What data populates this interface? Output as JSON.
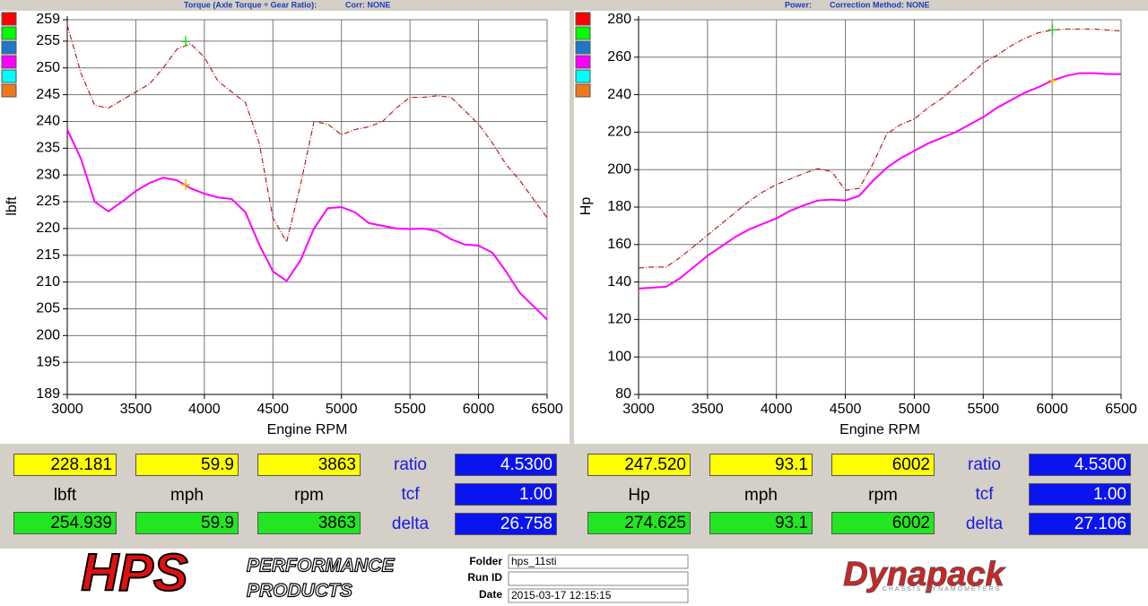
{
  "header": {
    "torque_title": "Torque (Axle Torque ÷ Gear Ratio):",
    "torque_corr": "Corr: NONE",
    "power_title": "Power:",
    "power_corr": "Correction Method: NONE"
  },
  "chart_data": [
    {
      "type": "line",
      "xlabel": "Engine RPM",
      "ylabel": "lbft",
      "grid": true,
      "legend_colors": [
        "#ff0000",
        "#00ff00",
        "#1e78c8",
        "#ff00ff",
        "#00ffff",
        "#f07820"
      ],
      "x": [
        3000,
        3100,
        3200,
        3300,
        3400,
        3500,
        3600,
        3700,
        3800,
        3900,
        4000,
        4100,
        4200,
        4300,
        4400,
        4500,
        4600,
        4700,
        4800,
        4900,
        5000,
        5100,
        5200,
        5300,
        5400,
        5500,
        5600,
        5700,
        5800,
        5900,
        6000,
        6100,
        6200,
        6300,
        6400,
        6500
      ],
      "series": [
        {
          "color": "#ff00ff",
          "dash": false,
          "values": [
            238.5,
            233,
            225,
            223.2,
            225,
            227,
            228.5,
            229.5,
            229,
            227.5,
            226.5,
            225.8,
            225.5,
            223,
            217,
            212,
            210.2,
            214,
            220,
            223.8,
            224,
            223,
            221,
            220.5,
            220,
            219.9,
            220,
            219.5,
            218,
            217,
            216.8,
            215.5,
            212,
            208,
            205.5,
            203
          ]
        },
        {
          "color": "#b22222",
          "dash": true,
          "values": [
            258,
            249,
            243,
            242.5,
            244,
            245.5,
            247,
            250,
            253.5,
            254.5,
            252,
            247.5,
            245.5,
            243.5,
            236,
            222,
            217.5,
            228,
            240,
            239.5,
            237.5,
            238.5,
            239,
            240,
            242.5,
            244.5,
            244.5,
            244.8,
            244.5,
            242,
            239.5,
            236,
            232,
            229,
            225.5,
            222
          ]
        }
      ],
      "cursor": {
        "x": 3863,
        "values": [
          228.181,
          254.939
        ],
        "colors": [
          "#e0c000",
          "#33cc33"
        ]
      },
      "xlim": [
        3000,
        6500
      ],
      "xticks": [
        3000,
        3500,
        4000,
        4500,
        5000,
        5500,
        6000,
        6500
      ],
      "ylim": [
        189,
        259
      ],
      "yticks": [
        189,
        195,
        200,
        205,
        210,
        215,
        220,
        225,
        230,
        235,
        240,
        245,
        250,
        255,
        259
      ]
    },
    {
      "type": "line",
      "xlabel": "Engine RPM",
      "ylabel": "Hp",
      "grid": true,
      "legend_colors": [
        "#ff0000",
        "#00ff00",
        "#1e78c8",
        "#ff00ff",
        "#00ffff",
        "#f07820"
      ],
      "x": [
        3000,
        3100,
        3200,
        3300,
        3400,
        3500,
        3600,
        3700,
        3800,
        3900,
        4000,
        4100,
        4200,
        4300,
        4400,
        4500,
        4600,
        4700,
        4800,
        4900,
        5000,
        5100,
        5200,
        5300,
        5400,
        5500,
        5600,
        5700,
        5800,
        5900,
        6000,
        6100,
        6200,
        6300,
        6400,
        6500
      ],
      "series": [
        {
          "color": "#ff00ff",
          "dash": false,
          "values": [
            136.5,
            137,
            137.5,
            142,
            148,
            154,
            159,
            164,
            168,
            171,
            174,
            178,
            181,
            183.5,
            184,
            183.5,
            186,
            194,
            201,
            206,
            210,
            214,
            217,
            220,
            224,
            228,
            233,
            237,
            241,
            244,
            247.5,
            250,
            251.5,
            251.5,
            251,
            251
          ]
        },
        {
          "color": "#b22222",
          "dash": true,
          "values": [
            147.5,
            148,
            148,
            153,
            159,
            165,
            171,
            177,
            183,
            188,
            192,
            195,
            198,
            200.5,
            199,
            189,
            190,
            203,
            219,
            224,
            227,
            233,
            238,
            244,
            250,
            257,
            261,
            266,
            270,
            273,
            274.5,
            275,
            275,
            275,
            274.5,
            274
          ]
        }
      ],
      "cursor": {
        "x": 6002,
        "values": [
          247.52,
          274.625
        ],
        "colors": [
          "#e0c000",
          "#33cc33"
        ]
      },
      "xlim": [
        3000,
        6500
      ],
      "xticks": [
        3000,
        3500,
        4000,
        4500,
        5000,
        5500,
        6000,
        6500
      ],
      "ylim": [
        80,
        280
      ],
      "yticks": [
        80,
        100,
        120,
        140,
        160,
        180,
        200,
        220,
        240,
        260,
        280
      ]
    }
  ],
  "readouts": [
    {
      "yellow": [
        "228.181",
        "59.9",
        "3863"
      ],
      "units": [
        "lbft",
        "mph",
        "rpm"
      ],
      "green": [
        "254.939",
        "59.9",
        "3863"
      ],
      "param_names": [
        "ratio",
        "tcf",
        "delta"
      ],
      "param_values": [
        "4.5300",
        "1.00",
        "26.758"
      ]
    },
    {
      "yellow": [
        "247.520",
        "93.1",
        "6002"
      ],
      "units": [
        "Hp",
        "mph",
        "rpm"
      ],
      "green": [
        "274.625",
        "93.1",
        "6002"
      ],
      "param_names": [
        "ratio",
        "tcf",
        "delta"
      ],
      "param_values": [
        "4.5300",
        "1.00",
        "27.106"
      ]
    }
  ],
  "footer": {
    "hps": "HPS",
    "hps_line1": "PERFORMANCE",
    "hps_line2": "PRODUCTS",
    "folder_label": "Folder",
    "folder": "hps_11sti",
    "runid_label": "Run ID",
    "date_label": "Date",
    "date": "2015-03-17 12:15:15",
    "dynapack": "Dynapack",
    "dynapack_sub": "CHASSIS DYNAMOMETERS"
  }
}
